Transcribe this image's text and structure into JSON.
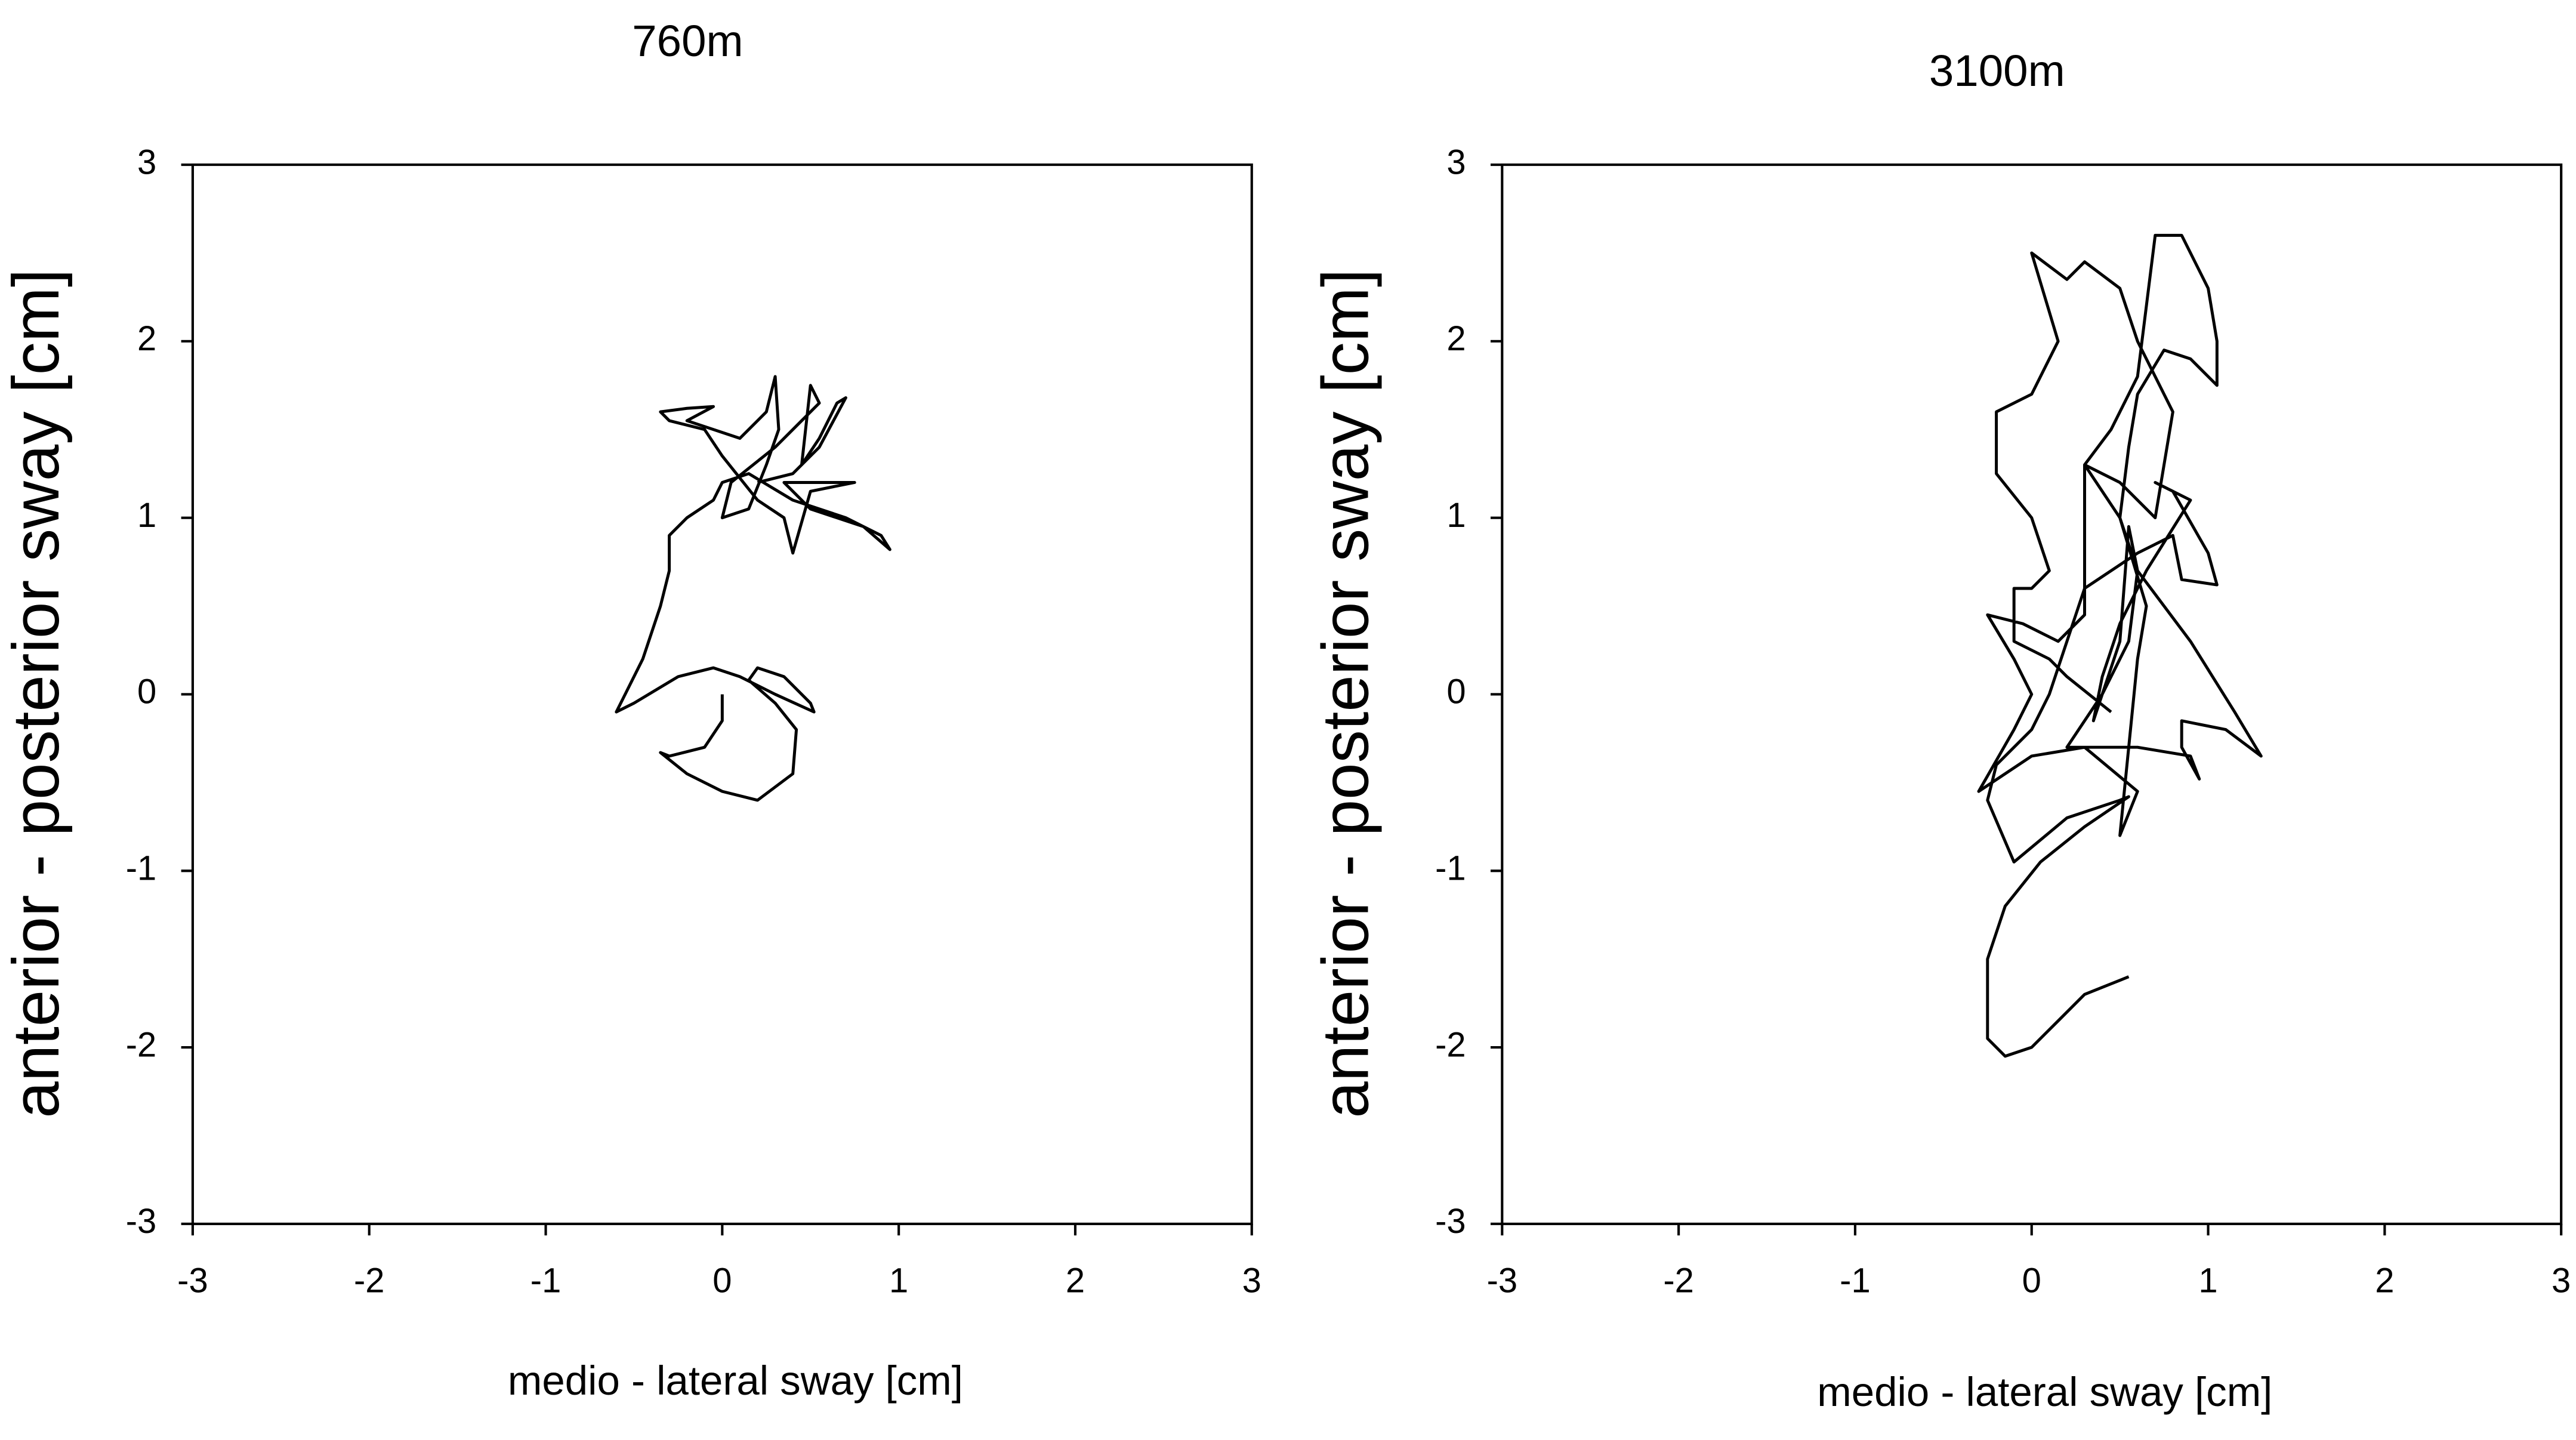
{
  "chart_data": [
    {
      "type": "line",
      "title": "760m",
      "xlabel": "medio - lateral sway [cm]",
      "ylabel": "anterior - posterior sway [cm]",
      "xlim": [
        -3,
        3
      ],
      "ylim": [
        -3,
        3
      ],
      "xticks": [
        -3,
        -2,
        -1,
        0,
        1,
        2,
        3
      ],
      "yticks": [
        -3,
        -2,
        -1,
        0,
        1,
        2,
        3
      ],
      "color": "#000000",
      "x": [
        0.0,
        0.0,
        -0.1,
        -0.3,
        -0.35,
        -0.2,
        0.0,
        0.2,
        0.4,
        0.42,
        0.3,
        0.15,
        0.2,
        0.35,
        0.5,
        0.52,
        0.3,
        0.1,
        -0.05,
        -0.25,
        -0.5,
        -0.6,
        -0.55,
        -0.45,
        -0.35,
        -0.3,
        -0.3,
        -0.2,
        -0.05,
        0.0,
        0.15,
        0.4,
        0.7,
        0.9,
        0.95,
        0.8,
        0.5,
        0.35,
        0.6,
        0.75,
        0.5,
        0.4,
        0.35,
        0.2,
        0.0,
        -0.1,
        -0.3,
        -0.35,
        -0.2,
        -0.05,
        -0.2,
        0.1,
        0.25,
        0.3,
        0.32,
        0.25,
        0.15,
        0.0,
        0.05,
        0.3,
        0.45,
        0.55,
        0.5,
        0.45,
        0.55,
        0.65,
        0.7,
        0.55,
        0.4,
        0.2
      ],
      "values": [
        0.0,
        -0.15,
        -0.3,
        -0.35,
        -0.33,
        -0.45,
        -0.55,
        -0.6,
        -0.45,
        -0.2,
        -0.05,
        0.08,
        0.15,
        0.1,
        -0.05,
        -0.1,
        0.0,
        0.1,
        0.15,
        0.1,
        -0.05,
        -0.1,
        0.0,
        0.2,
        0.5,
        0.7,
        0.9,
        1.0,
        1.1,
        1.2,
        1.25,
        1.1,
        1.0,
        0.9,
        0.82,
        0.95,
        1.05,
        1.2,
        1.2,
        1.2,
        1.15,
        0.8,
        1.0,
        1.1,
        1.35,
        1.5,
        1.55,
        1.6,
        1.62,
        1.63,
        1.55,
        1.45,
        1.6,
        1.8,
        1.5,
        1.3,
        1.05,
        1.0,
        1.2,
        1.4,
        1.55,
        1.65,
        1.75,
        1.3,
        1.45,
        1.65,
        1.68,
        1.4,
        1.25,
        1.2
      ]
    },
    {
      "type": "line",
      "title": "3100m",
      "xlabel": "medio - lateral sway [cm]",
      "ylabel": "anterior - posterior sway [cm]",
      "xlim": [
        -3,
        3
      ],
      "ylim": [
        -3,
        3
      ],
      "xticks": [
        -3,
        -2,
        -1,
        0,
        1,
        2,
        3
      ],
      "yticks": [
        -3,
        -2,
        -1,
        0,
        1,
        2,
        3
      ],
      "color": "#000000",
      "x": [
        0.55,
        0.3,
        0.15,
        0.0,
        -0.15,
        -0.25,
        -0.25,
        -0.15,
        0.05,
        0.3,
        0.55,
        0.5,
        0.2,
        -0.1,
        -0.25,
        -0.2,
        0.0,
        0.1,
        0.2,
        0.3,
        0.6,
        0.8,
        0.85,
        1.05,
        1.0,
        0.8,
        0.7,
        0.9,
        0.65,
        0.5,
        0.4,
        0.35,
        0.5,
        0.55,
        0.6,
        0.55,
        0.4,
        0.2,
        0.6,
        0.9,
        0.95,
        0.85,
        0.85,
        1.1,
        1.3,
        1.15,
        0.9,
        0.6,
        0.5,
        0.55,
        0.6,
        0.75,
        0.9,
        1.05,
        1.05,
        1.0,
        0.85,
        0.7,
        0.65,
        0.6,
        0.45,
        0.3,
        0.5,
        0.65,
        0.6,
        0.5,
        0.6,
        0.3,
        0.0,
        -0.3,
        -0.1,
        0.0,
        -0.1,
        -0.25,
        -0.05,
        0.15,
        0.3,
        0.3,
        0.5,
        0.7,
        0.8,
        0.6,
        0.5,
        0.3,
        0.2,
        0.0,
        0.15,
        0.0,
        -0.2,
        -0.2,
        0.0,
        0.1,
        0.0,
        -0.1,
        -0.1,
        0.1,
        0.2,
        0.45
      ],
      "values": [
        -1.6,
        -1.7,
        -1.85,
        -2.0,
        -2.05,
        -1.95,
        -1.5,
        -1.2,
        -0.95,
        -0.75,
        -0.58,
        -0.6,
        -0.7,
        -0.95,
        -0.6,
        -0.4,
        -0.2,
        0.0,
        0.3,
        0.6,
        0.8,
        0.9,
        0.65,
        0.62,
        0.8,
        1.15,
        1.2,
        1.1,
        0.7,
        0.4,
        0.1,
        -0.15,
        0.3,
        0.95,
        0.7,
        0.3,
        0.0,
        -0.3,
        -0.3,
        -0.35,
        -0.48,
        -0.3,
        -0.15,
        -0.2,
        -0.35,
        -0.1,
        0.3,
        0.7,
        1.0,
        1.4,
        1.7,
        1.95,
        1.9,
        1.75,
        2.0,
        2.3,
        2.6,
        2.6,
        2.2,
        1.8,
        1.5,
        1.3,
        1.0,
        0.5,
        0.2,
        -0.8,
        -0.55,
        -0.3,
        -0.35,
        -0.55,
        -0.2,
        0.0,
        0.2,
        0.45,
        0.4,
        0.3,
        0.45,
        1.3,
        1.2,
        1.0,
        1.6,
        2.0,
        2.3,
        2.45,
        2.35,
        2.5,
        2.0,
        1.7,
        1.6,
        1.25,
        1.0,
        0.7,
        0.6,
        0.6,
        0.3,
        0.2,
        0.1,
        -0.1
      ]
    }
  ]
}
